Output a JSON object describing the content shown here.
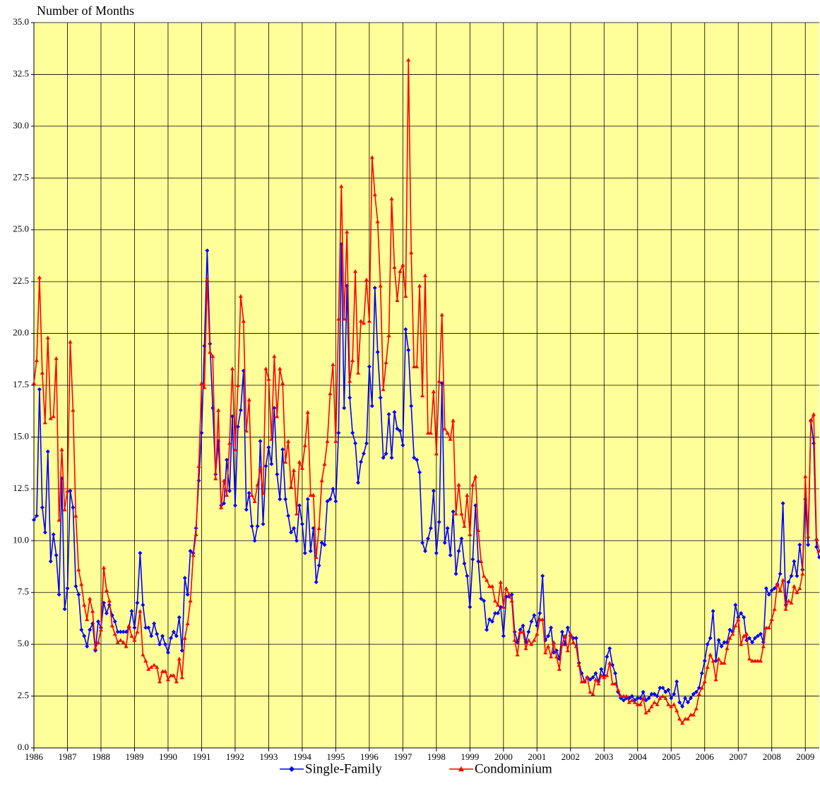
{
  "chart_data": {
    "type": "line",
    "y_label": "Number of Months",
    "categories": [
      "1986",
      null,
      null,
      null,
      null,
      null,
      null,
      null,
      null,
      null,
      null,
      null,
      "1987",
      null,
      null,
      null,
      null,
      null,
      null,
      null,
      null,
      null,
      null,
      null,
      "1988",
      null,
      null,
      null,
      null,
      null,
      null,
      null,
      null,
      null,
      null,
      null,
      "1989",
      null,
      null,
      null,
      null,
      null,
      null,
      null,
      null,
      null,
      null,
      null,
      "1990",
      null,
      null,
      null,
      null,
      null,
      null,
      null,
      null,
      null,
      null,
      null,
      "1991",
      null,
      null,
      null,
      null,
      null,
      null,
      null,
      null,
      null,
      null,
      null,
      "1992",
      null,
      null,
      null,
      null,
      null,
      null,
      null,
      null,
      null,
      null,
      null,
      "1993",
      null,
      null,
      null,
      null,
      null,
      null,
      null,
      null,
      null,
      null,
      null,
      "1994",
      null,
      null,
      null,
      null,
      null,
      null,
      null,
      null,
      null,
      null,
      null,
      "1995",
      null,
      null,
      null,
      null,
      null,
      null,
      null,
      null,
      null,
      null,
      null,
      "1996",
      null,
      null,
      null,
      null,
      null,
      null,
      null,
      null,
      null,
      null,
      null,
      "1997",
      null,
      null,
      null,
      null,
      null,
      null,
      null,
      null,
      null,
      null,
      null,
      "1998",
      null,
      null,
      null,
      null,
      null,
      null,
      null,
      null,
      null,
      null,
      null,
      "1999",
      null,
      null,
      null,
      null,
      null,
      null,
      null,
      null,
      null,
      null,
      null,
      "2000",
      null,
      null,
      null,
      null,
      null,
      null,
      null,
      null,
      null,
      null,
      null,
      "2001",
      null,
      null,
      null,
      null,
      null,
      null,
      null,
      null,
      null,
      null,
      null,
      "2002",
      null,
      null,
      null,
      null,
      null,
      null,
      null,
      null,
      null,
      null,
      null,
      "2003",
      null,
      null,
      null,
      null,
      null,
      null,
      null,
      null,
      null,
      null,
      null,
      "2004",
      null,
      null,
      null,
      null,
      null,
      null,
      null,
      null,
      null,
      null,
      null,
      "2005",
      null,
      null,
      null,
      null,
      null,
      null,
      null,
      null,
      null,
      null,
      null,
      "2006",
      null,
      null,
      null,
      null,
      null,
      null,
      null,
      null,
      null,
      null,
      null,
      "2007",
      null,
      null,
      null,
      null,
      null,
      null,
      null,
      null,
      null,
      null,
      null,
      "2008",
      null,
      null,
      null,
      null,
      null,
      null,
      null,
      null,
      null,
      null,
      null,
      "2009",
      null,
      null,
      null,
      null,
      null
    ],
    "series": [
      {
        "name": "Single-Family",
        "color": "#0000ff",
        "marker": "diamond",
        "values": [
          11.0,
          11.2,
          17.3,
          11.6,
          10.4,
          14.3,
          9.0,
          10.3,
          9.3,
          7.4,
          13.0,
          6.7,
          7.7,
          12.4,
          11.6,
          7.8,
          7.4,
          5.7,
          5.4,
          4.9,
          5.7,
          6.0,
          4.7,
          6.1,
          5.8,
          7.0,
          6.5,
          6.9,
          6.4,
          6.1,
          5.6,
          5.6,
          5.6,
          5.6,
          5.8,
          6.6,
          5.8,
          7.0,
          9.4,
          6.9,
          5.8,
          5.8,
          5.4,
          6.0,
          5.5,
          5.0,
          5.4,
          5.0,
          4.6,
          5.3,
          5.6,
          5.4,
          6.3,
          4.7,
          8.2,
          7.4,
          9.5,
          9.4,
          10.6,
          12.9,
          15.2,
          19.4,
          24.0,
          19.5,
          16.4,
          13.2,
          14.8,
          11.7,
          11.8,
          13.9,
          12.4,
          16.0,
          11.7,
          15.5,
          16.3,
          18.2,
          11.5,
          12.3,
          10.7,
          10.0,
          10.7,
          14.8,
          10.8,
          13.6,
          14.5,
          13.7,
          16.4,
          13.2,
          12.0,
          14.4,
          12.0,
          11.2,
          10.4,
          10.6,
          10.0,
          11.7,
          10.8,
          9.4,
          12.0,
          9.5,
          10.6,
          8.0,
          8.8,
          9.9,
          9.8,
          11.9,
          12.0,
          12.5,
          11.9,
          15.2,
          24.3,
          16.4,
          22.3,
          16.9,
          15.2,
          14.7,
          12.8,
          13.8,
          14.2,
          14.7,
          18.4,
          16.5,
          22.2,
          19.1,
          16.9,
          14.0,
          14.2,
          16.1,
          14.0,
          16.2,
          15.4,
          15.3,
          14.6,
          20.2,
          19.2,
          16.5,
          14.0,
          13.9,
          13.3,
          9.9,
          9.5,
          10.1,
          10.6,
          12.4,
          9.4,
          10.9,
          17.6,
          9.9,
          10.6,
          9.3,
          11.4,
          8.4,
          9.5,
          10.1,
          8.9,
          8.3,
          6.8,
          9.1,
          11.7,
          9.0,
          7.2,
          7.1,
          5.7,
          6.2,
          6.1,
          6.5,
          6.5,
          6.8,
          5.4,
          7.3,
          7.3,
          7.4,
          5.6,
          5.1,
          5.7,
          5.9,
          5.1,
          5.6,
          6.1,
          6.4,
          5.9,
          6.5,
          8.3,
          5.2,
          5.4,
          5.8,
          4.6,
          4.7,
          4.3,
          5.6,
          5.0,
          5.8,
          5.4,
          5.3,
          5.3,
          4.1,
          3.6,
          3.2,
          3.4,
          3.3,
          3.4,
          3.6,
          3.2,
          3.8,
          3.5,
          4.4,
          4.8,
          4.0,
          3.6,
          2.7,
          2.4,
          2.3,
          2.4,
          2.4,
          2.5,
          2.3,
          2.4,
          2.4,
          2.7,
          2.3,
          2.4,
          2.6,
          2.6,
          2.5,
          2.9,
          2.9,
          2.7,
          2.8,
          2.4,
          2.6,
          3.2,
          2.2,
          2.0,
          2.4,
          2.2,
          2.4,
          2.6,
          2.7,
          2.9,
          3.6,
          4.2,
          5.0,
          5.3,
          6.6,
          4.2,
          5.2,
          4.9,
          5.1,
          5.1,
          5.7,
          5.6,
          6.9,
          6.3,
          6.5,
          6.3,
          5.2,
          5.3,
          5.1,
          5.3,
          5.4,
          5.5,
          5.1,
          7.7,
          7.4,
          7.6,
          7.7,
          7.9,
          8.4,
          11.8,
          6.9,
          8.0,
          8.3,
          9.0,
          8.3,
          9.8,
          8.6,
          12.0,
          9.8,
          15.8,
          14.7,
          9.7,
          9.2
        ]
      },
      {
        "name": "Condominium",
        "color": "#ff0000",
        "marker": "triangle",
        "values": [
          17.6,
          18.7,
          22.7,
          18.1,
          15.7,
          19.8,
          15.9,
          16.0,
          18.8,
          11.0,
          14.4,
          11.5,
          12.4,
          19.6,
          16.3,
          11.2,
          8.6,
          7.9,
          6.9,
          6.2,
          7.2,
          6.6,
          4.8,
          5.1,
          5.7,
          8.7,
          7.6,
          7.1,
          5.9,
          5.5,
          5.1,
          5.2,
          5.1,
          4.9,
          5.9,
          5.4,
          5.2,
          5.6,
          6.6,
          4.5,
          4.2,
          3.8,
          3.9,
          4.0,
          3.9,
          3.2,
          3.7,
          3.7,
          3.3,
          3.5,
          3.5,
          3.2,
          4.3,
          3.4,
          5.3,
          6.0,
          7.1,
          9.3,
          10.3,
          13.6,
          17.6,
          17.4,
          22.6,
          19.1,
          18.9,
          13.0,
          16.3,
          11.6,
          12.9,
          12.2,
          14.7,
          18.3,
          14.4,
          17.5,
          21.8,
          20.6,
          15.3,
          16.8,
          12.2,
          11.9,
          12.7,
          13.5,
          12.3,
          18.3,
          17.8,
          14.9,
          18.9,
          16.0,
          18.3,
          17.6,
          13.8,
          14.8,
          12.6,
          13.4,
          11.3,
          13.8,
          13.5,
          14.6,
          16.2,
          12.2,
          12.2,
          9.2,
          10.6,
          12.9,
          13.7,
          14.8,
          17.1,
          18.5,
          14.8,
          20.7,
          27.1,
          20.7,
          24.9,
          17.7,
          18.7,
          23.0,
          18.1,
          20.6,
          20.5,
          22.6,
          20.6,
          28.5,
          26.7,
          25.4,
          22.3,
          17.3,
          18.6,
          19.9,
          26.5,
          23.2,
          21.6,
          23.0,
          23.3,
          21.8,
          33.2,
          23.9,
          18.4,
          18.4,
          22.3,
          17.0,
          22.8,
          15.2,
          15.2,
          17.2,
          14.2,
          17.7,
          20.9,
          15.4,
          15.2,
          14.9,
          15.8,
          11.3,
          12.7,
          11.3,
          10.7,
          12.2,
          10.3,
          12.7,
          13.1,
          10.5,
          9.0,
          8.3,
          8.1,
          7.8,
          7.8,
          7.1,
          6.9,
          8.0,
          6.8,
          7.7,
          7.4,
          7.1,
          5.2,
          4.5,
          5.6,
          5.6,
          4.8,
          5.2,
          5.0,
          5.2,
          5.5,
          6.2,
          6.2,
          4.6,
          4.9,
          4.4,
          5.1,
          4.4,
          3.8,
          5.0,
          5.4,
          4.7,
          5.5,
          5.1,
          4.9,
          4.0,
          3.2,
          3.2,
          3.4,
          2.7,
          2.6,
          3.3,
          3.1,
          3.5,
          3.4,
          3.5,
          4.1,
          3.1,
          3.1,
          2.8,
          2.5,
          2.5,
          2.5,
          2.2,
          2.3,
          2.2,
          2.1,
          2.1,
          2.4,
          1.7,
          1.8,
          2.0,
          2.2,
          2.1,
          2.4,
          2.5,
          2.4,
          2.1,
          2.0,
          2.1,
          1.8,
          1.4,
          1.2,
          1.4,
          1.4,
          1.6,
          1.6,
          1.9,
          2.6,
          2.9,
          3.2,
          3.9,
          4.5,
          4.2,
          3.3,
          4.3,
          4.1,
          4.1,
          4.8,
          5.3,
          5.5,
          5.9,
          6.2,
          5.0,
          5.4,
          5.5,
          4.3,
          4.2,
          4.2,
          4.2,
          4.2,
          4.9,
          5.8,
          5.8,
          6.2,
          6.7,
          7.9,
          7.6,
          8.1,
          6.7,
          7.1,
          7.0,
          7.8,
          7.5,
          7.7,
          8.4,
          13.1,
          10.2,
          15.8,
          16.1,
          10.1,
          9.5
        ]
      }
    ],
    "ylim": [
      0,
      35
    ],
    "yticks": [
      {
        "value": 0,
        "label": "0.0"
      },
      2.5,
      {
        "value": 5,
        "label": "5.0"
      },
      7.5,
      {
        "value": 10,
        "label": "10.0"
      },
      12.5,
      {
        "value": 15,
        "label": "15.0"
      },
      17.5,
      {
        "value": 20,
        "label": "20.0"
      },
      22.5,
      {
        "value": 25,
        "label": "25.0"
      },
      27.5,
      {
        "value": 30,
        "label": "30.0"
      },
      32.5,
      {
        "value": 35,
        "label": "35.0"
      }
    ],
    "grid": true,
    "background": "#ffff99",
    "legend": "bottom"
  }
}
